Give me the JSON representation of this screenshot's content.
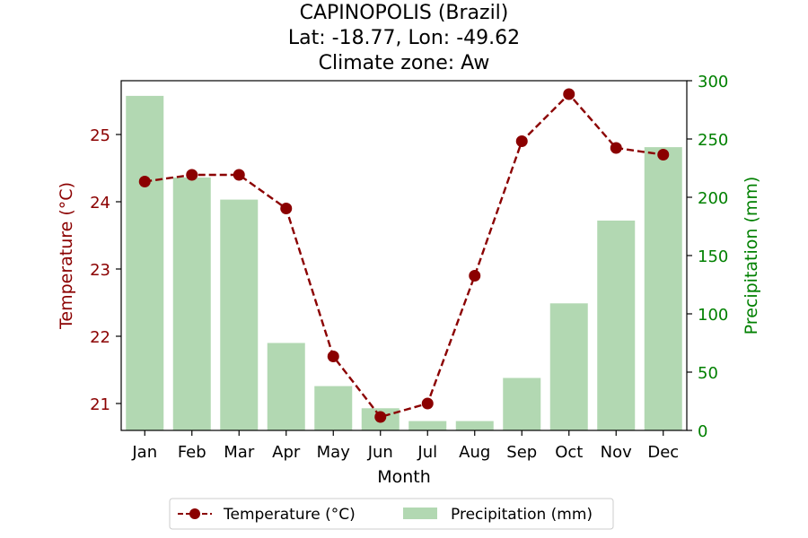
{
  "chart_data": {
    "type": "bar+line",
    "title": [
      "CAPINOPOLIS (Brazil)",
      "Lat: -18.77, Lon: -49.62",
      "Climate zone: Aw"
    ],
    "xlabel": "Month",
    "ylabel_left": "Temperature (°C)",
    "ylabel_right": "Precipitation (mm)",
    "categories": [
      "Jan",
      "Feb",
      "Mar",
      "Apr",
      "May",
      "Jun",
      "Jul",
      "Aug",
      "Sep",
      "Oct",
      "Nov",
      "Dec"
    ],
    "temperature": {
      "name": "Temperature (°C)",
      "values": [
        24.3,
        24.4,
        24.4,
        23.9,
        21.7,
        20.8,
        21.0,
        22.9,
        24.9,
        25.6,
        24.8,
        24.7
      ],
      "ylim": [
        20.6,
        25.8
      ],
      "ticks": [
        21,
        22,
        23,
        24,
        25
      ],
      "color": "#8b0000"
    },
    "precipitation": {
      "name": "Precipitation (mm)",
      "values": [
        287,
        217,
        198,
        75,
        38,
        19,
        8,
        8,
        45,
        109,
        180,
        243
      ],
      "ylim": [
        0,
        300
      ],
      "ticks": [
        0,
        50,
        100,
        150,
        200,
        250,
        300
      ],
      "color": "#b2d8b2",
      "tick_color": "#008000"
    },
    "legend": {
      "placement": "bottom-center",
      "entries": [
        "Temperature (°C)",
        "Precipitation (mm)"
      ]
    }
  }
}
